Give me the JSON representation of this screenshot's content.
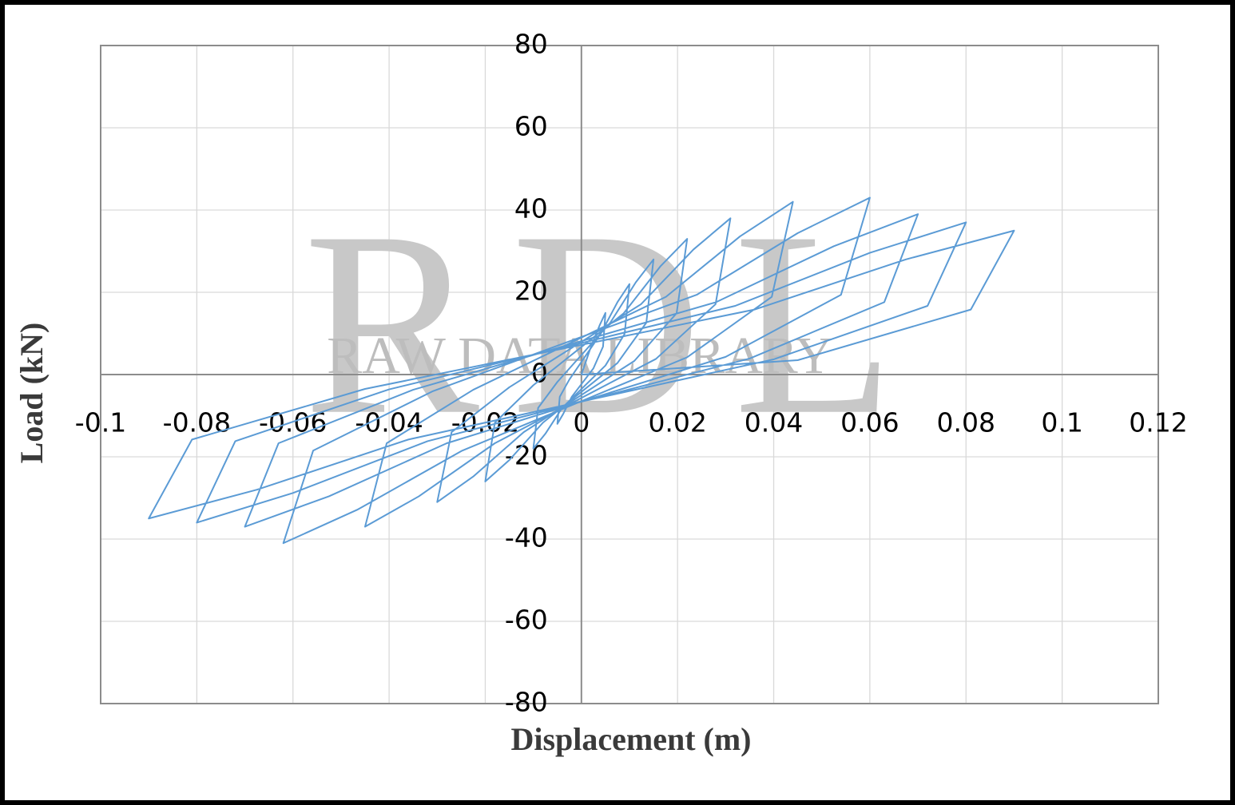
{
  "chart_data": {
    "type": "line",
    "xlabel": "Displacement (m)",
    "ylabel": "Load (kN)",
    "watermark_letters": "RDL",
    "watermark_text": "RAW DATA LIBRARY",
    "color": "#5b9bd5",
    "xlim": [
      -0.1,
      0.12
    ],
    "xticks": [
      -0.1,
      -0.08,
      -0.06,
      -0.04,
      -0.02,
      0,
      0.02,
      0.04,
      0.06,
      0.08,
      0.1,
      0.12
    ],
    "ylim": [
      -80,
      80
    ],
    "yticks": [
      -80,
      -60,
      -40,
      -20,
      0,
      20,
      40,
      60,
      80
    ],
    "grid": true,
    "x": [
      0,
      0.002,
      0.0038,
      0.005,
      0.0045,
      0.0025,
      -0.002,
      -0.0038,
      -0.005,
      -0.0045,
      -0.0025,
      0.004,
      0.0075,
      0.01,
      0.009,
      0.005,
      -0.004,
      -0.0075,
      -0.01,
      -0.009,
      -0.005,
      0.006,
      0.0113,
      0.015,
      0.0135,
      0.0075,
      -0.008,
      -0.015,
      -0.02,
      -0.018,
      -0.01,
      0.0088,
      0.0165,
      0.022,
      0.0198,
      0.011,
      -0.012,
      -0.0225,
      -0.03,
      -0.027,
      -0.015,
      0.0124,
      0.0233,
      0.031,
      0.0279,
      0.0155,
      -0.018,
      -0.0338,
      -0.045,
      -0.0405,
      -0.0225,
      0.0176,
      0.033,
      0.044,
      0.0396,
      0.022,
      -0.0248,
      -0.0465,
      -0.062,
      -0.0558,
      -0.031,
      0.024,
      0.045,
      0.06,
      0.054,
      0.03,
      -0.028,
      -0.0525,
      -0.07,
      -0.063,
      -0.035,
      0.028,
      0.0525,
      0.07,
      0.063,
      0.035,
      -0.032,
      -0.06,
      -0.08,
      -0.072,
      -0.04,
      0.032,
      0.06,
      0.08,
      0.072,
      0.04,
      -0.036,
      -0.0675,
      -0.09,
      -0.081,
      -0.045,
      0.036,
      0.0675,
      0.09,
      0.081,
      0.045,
      0
    ],
    "series": [
      {
        "values": [
          0,
          6.8,
          12,
          15,
          6.8,
          1.5,
          -5.4,
          -9.6,
          -12,
          -5.4,
          -1.2,
          9.9,
          17.6,
          22,
          9.9,
          2.2,
          -8.1,
          -14.4,
          -18,
          -8.1,
          -1.8,
          12.6,
          22.4,
          28,
          12.6,
          2.8,
          -11.7,
          -20.8,
          -26,
          -11.7,
          -2.6,
          14.9,
          26.4,
          33,
          14.9,
          3.3,
          -14,
          -24.8,
          -31,
          -14,
          -3.1,
          17.1,
          30.4,
          38,
          17.1,
          3.8,
          -16.7,
          -29.6,
          -37,
          -16.7,
          -3.7,
          18.9,
          33.6,
          42,
          18.9,
          4.2,
          -18.5,
          -32.8,
          -41,
          -18.5,
          -4.1,
          19.4,
          34.4,
          43,
          19.4,
          4.3,
          -16.7,
          -29.6,
          -37,
          -16.7,
          -3.7,
          17.6,
          31.2,
          39,
          17.6,
          3.9,
          -16.2,
          -28.8,
          -36,
          -16.2,
          -3.6,
          16.7,
          29.6,
          37,
          16.7,
          3.7,
          -15.8,
          -28,
          -35,
          -15.8,
          -3.5,
          15.8,
          28,
          35,
          15.8,
          3.5,
          0
        ]
      }
    ]
  }
}
